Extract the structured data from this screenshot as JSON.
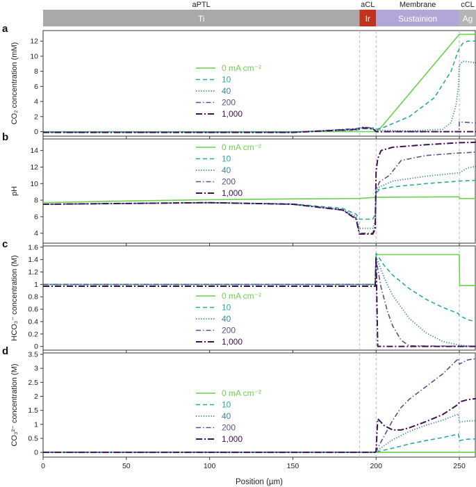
{
  "figure": {
    "x_axis_label": "Position (µm)",
    "x_ticks": [
      0,
      50,
      100,
      150,
      200,
      250
    ],
    "xlim": [
      0,
      260
    ]
  },
  "layers": [
    {
      "region": "aPTL",
      "material": "Ti",
      "range": [
        0,
        190
      ],
      "color": "#a9a9a9"
    },
    {
      "region": "aCL",
      "material": "Ir",
      "range": [
        190,
        200
      ],
      "color": "#c0341d"
    },
    {
      "region": "Membrane",
      "material": "Sustainion",
      "range": [
        200,
        250
      ],
      "color": "#b2a5d8"
    },
    {
      "region": "cCL",
      "material": "Ag",
      "range": [
        250,
        260
      ],
      "color": "#b4b4b4"
    }
  ],
  "legend": {
    "labels": [
      "0 mA cm⁻²",
      "10",
      "40",
      "200",
      "1,000"
    ],
    "colors": [
      "#6ad14a",
      "#2aa89a",
      "#3a85a3",
      "#56508f",
      "#3f1052"
    ]
  },
  "chart_data": [
    {
      "panel": "a",
      "type": "line",
      "ylabel": "CO₂ concentration (mM)",
      "ylim": [
        -0.6,
        13.4
      ],
      "yticks": [
        0,
        2,
        4,
        6,
        8,
        10,
        12
      ],
      "series": [
        {
          "name": "0 mA cm⁻²",
          "x": [
            0,
            199,
            200,
            202,
            250,
            260
          ],
          "y": [
            0,
            0,
            0,
            0.3,
            12.9,
            12.9
          ]
        },
        {
          "name": "10",
          "x": [
            0,
            150,
            188,
            192,
            198,
            200,
            205,
            220,
            235,
            245,
            249,
            250,
            252,
            255,
            260
          ],
          "y": [
            -0.05,
            -0.05,
            0.2,
            0.4,
            0.35,
            0.3,
            0.6,
            2.0,
            4.5,
            8.0,
            10.5,
            11.0,
            11.7,
            12.0,
            12.0
          ]
        },
        {
          "name": "40",
          "x": [
            0,
            150,
            188,
            192,
            198,
            200,
            220,
            240,
            245,
            248,
            249.5,
            250,
            252,
            255,
            260
          ],
          "y": [
            -0.05,
            -0.05,
            0.3,
            0.55,
            0.5,
            0.2,
            0.1,
            0.3,
            1.2,
            3.5,
            6.0,
            8.8,
            9.3,
            9.3,
            9.1
          ]
        },
        {
          "name": "200",
          "x": [
            0,
            150,
            188,
            192,
            198,
            200,
            249.8,
            250,
            252,
            260
          ],
          "y": [
            -0.1,
            -0.1,
            0.4,
            0.6,
            0.5,
            0,
            0,
            1.3,
            1.25,
            1.15
          ]
        },
        {
          "name": "1,000",
          "x": [
            0,
            150,
            188,
            192,
            198,
            200,
            260
          ],
          "y": [
            -0.1,
            -0.1,
            0.3,
            0.5,
            0.4,
            0,
            0
          ]
        }
      ]
    },
    {
      "panel": "b",
      "type": "line",
      "ylabel": "pH",
      "ylim": [
        2.8,
        15.4
      ],
      "yticks": [
        4,
        6,
        8,
        10,
        12,
        14
      ],
      "series": [
        {
          "name": "0 mA cm⁻²",
          "x": [
            0,
            50,
            100,
            150,
            190,
            200,
            250,
            250.2,
            260
          ],
          "y": [
            7.7,
            7.9,
            8.05,
            8.15,
            8.2,
            8.35,
            8.4,
            8.2,
            8.2
          ]
        },
        {
          "name": "10",
          "x": [
            0,
            100,
            150,
            180,
            188,
            190,
            198,
            199.5,
            200,
            202,
            210,
            230,
            250,
            260
          ],
          "y": [
            7.5,
            7.7,
            7.55,
            7.0,
            6.3,
            5.7,
            5.7,
            6.3,
            8.8,
            9.3,
            9.6,
            10.0,
            10.3,
            10.4
          ]
        },
        {
          "name": "40",
          "x": [
            0,
            100,
            150,
            180,
            188,
            190,
            198,
            199.5,
            200,
            202,
            210,
            230,
            250,
            255,
            260
          ],
          "y": [
            7.5,
            7.7,
            7.5,
            6.9,
            6.0,
            4.6,
            4.6,
            5.5,
            9.0,
            9.6,
            10.3,
            10.9,
            11.3,
            11.9,
            12.1
          ]
        },
        {
          "name": "200",
          "x": [
            0,
            100,
            150,
            180,
            188,
            190,
            198,
            199.5,
            200,
            202,
            208,
            215,
            230,
            250,
            260
          ],
          "y": [
            7.5,
            7.7,
            7.5,
            6.8,
            5.8,
            4.0,
            4.0,
            5.0,
            9.2,
            10.2,
            11.0,
            12.8,
            13.4,
            13.7,
            13.8
          ]
        },
        {
          "name": "1,000",
          "x": [
            0,
            100,
            150,
            180,
            188,
            190,
            198,
            199.5,
            200,
            201,
            203,
            210,
            230,
            250,
            260
          ],
          "y": [
            7.5,
            7.7,
            7.5,
            6.8,
            5.7,
            3.9,
            3.9,
            4.5,
            11.5,
            13.0,
            14.0,
            14.4,
            14.7,
            14.95,
            15.0
          ]
        }
      ]
    },
    {
      "panel": "c",
      "type": "line",
      "ylabel": "HCO₃⁻ concentration (M)",
      "ylim": [
        -0.06,
        1.62
      ],
      "yticks": [
        0,
        0.2,
        0.4,
        0.6,
        0.8,
        1,
        1.2,
        1.4,
        1.6
      ],
      "yticklabels": [
        "0",
        "0.2",
        "0.4",
        "0.6",
        "0.8",
        "1",
        "1.2",
        "1.4",
        "1.6"
      ],
      "series": [
        {
          "name": "0 mA cm⁻²",
          "x": [
            0,
            199.5,
            200,
            250,
            250.2,
            260
          ],
          "y": [
            1,
            1,
            1.48,
            1.48,
            0.98,
            0.98
          ]
        },
        {
          "name": "10",
          "x": [
            0,
            199.5,
            200,
            205,
            210,
            220,
            230,
            240,
            249.5,
            250,
            255,
            260
          ],
          "y": [
            1,
            1,
            1.5,
            1.3,
            1.15,
            0.93,
            0.76,
            0.63,
            0.53,
            0.5,
            0.43,
            0.4
          ]
        },
        {
          "name": "40",
          "x": [
            0,
            199.5,
            200,
            205,
            210,
            220,
            230,
            240,
            250,
            255,
            260
          ],
          "y": [
            1,
            1,
            1.45,
            1.1,
            0.82,
            0.45,
            0.22,
            0.08,
            0.02,
            0.01,
            0
          ]
        },
        {
          "name": "200",
          "x": [
            0,
            199.5,
            200,
            203,
            207,
            210,
            215,
            220,
            260
          ],
          "y": [
            1,
            1,
            1.4,
            0.95,
            0.55,
            0.33,
            0.1,
            0.01,
            0
          ]
        },
        {
          "name": "1,000",
          "x": [
            0,
            199.5,
            200,
            201,
            260
          ],
          "y": [
            0.97,
            0.97,
            1.45,
            0,
            0
          ]
        }
      ]
    },
    {
      "panel": "d",
      "type": "line",
      "ylabel": "CO₃²⁻ concentration (M)",
      "ylim": [
        -0.17,
        3.55
      ],
      "yticks": [
        0,
        0.5,
        1,
        1.5,
        2,
        2.5,
        3,
        3.5
      ],
      "yticklabels": [
        "0",
        "0.5",
        "1",
        "1.5",
        "2",
        "2.5",
        "3",
        "3.5"
      ],
      "series": [
        {
          "name": "0 mA cm⁻²",
          "x": [
            0,
            200,
            260
          ],
          "y": [
            0,
            0,
            0
          ]
        },
        {
          "name": "10",
          "x": [
            0,
            199.5,
            200,
            210,
            220,
            230,
            240,
            249.5,
            250,
            255,
            260
          ],
          "y": [
            0,
            0,
            0.01,
            0.15,
            0.3,
            0.42,
            0.53,
            0.65,
            0.42,
            0.47,
            0.48
          ]
        },
        {
          "name": "40",
          "x": [
            0,
            199.5,
            200,
            205,
            210,
            220,
            230,
            240,
            249.5,
            250,
            255,
            260
          ],
          "y": [
            0,
            0,
            0.02,
            0.25,
            0.45,
            0.75,
            0.97,
            1.15,
            1.37,
            1.08,
            1.12,
            1.13
          ]
        },
        {
          "name": "200",
          "x": [
            0,
            199.5,
            200,
            205,
            210,
            215,
            220,
            230,
            240,
            249.5,
            250,
            255,
            260
          ],
          "y": [
            0,
            0,
            0.05,
            0.6,
            1.15,
            1.6,
            1.9,
            2.35,
            2.8,
            3.35,
            3.15,
            3.3,
            3.35
          ]
        },
        {
          "name": "1,000",
          "x": [
            0,
            199.5,
            200,
            201,
            205,
            210,
            215,
            220,
            230,
            240,
            249.5,
            250,
            255,
            260
          ],
          "y": [
            0,
            0,
            0.05,
            1.2,
            0.95,
            0.8,
            0.8,
            0.88,
            1.1,
            1.35,
            1.72,
            1.8,
            1.88,
            1.92
          ]
        }
      ]
    }
  ]
}
